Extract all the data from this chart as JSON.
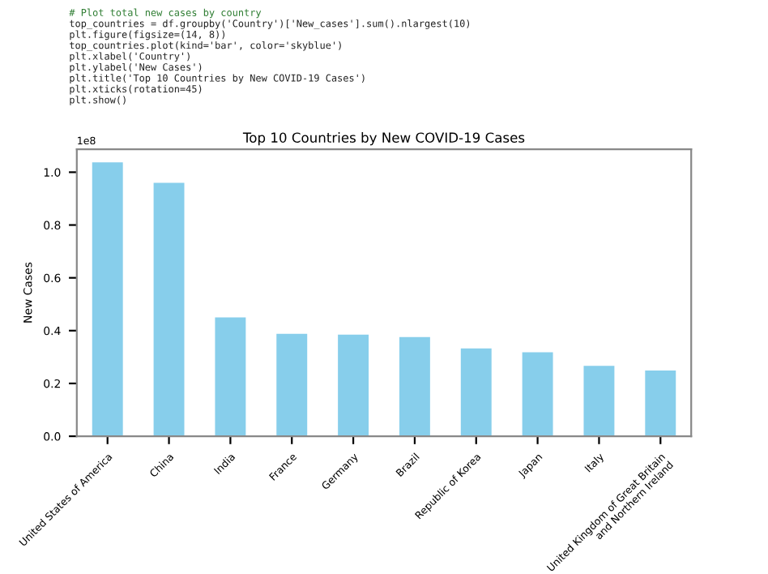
{
  "chart_data": {
    "type": "bar",
    "title": "Top 10 Countries by New COVID-19 Cases",
    "ylabel": "New Cases",
    "categories": [
      "United States of America",
      "China",
      "India",
      "France",
      "Germany",
      "Brazil",
      "Republic of Korea",
      "Japan",
      "Italy",
      "United Kingdom of Great Britain and Northern Ireland"
    ],
    "values": [
      1.037,
      0.96,
      0.45,
      0.388,
      0.385,
      0.376,
      0.333,
      0.318,
      0.267,
      0.249
    ],
    "color": "#87ceeb",
    "ylim": [
      0,
      1.087
    ],
    "yticks": [
      {
        "value": 0,
        "label": "0.0"
      },
      0.2,
      0.4,
      0.6,
      0.8,
      {
        "value": 1,
        "label": "1.0"
      }
    ],
    "grid": false,
    "legend": false,
    "annotations": [
      "1e8",
      "# Plot total new cases by country",
      "top_countries = df.groupby('Country')['New_cases'].sum().nlargest(10)",
      "plt.figure(figsize=(14, 8))",
      "top_countries.plot(kind='bar', color='skyblue')",
      "plt.xlabel('Country')",
      "plt.ylabel('New Cases')",
      "plt.title('Top 10 Countries by New COVID-19 Cases')",
      "plt.xticks(rotation=45)",
      "plt.show()"
    ]
  }
}
